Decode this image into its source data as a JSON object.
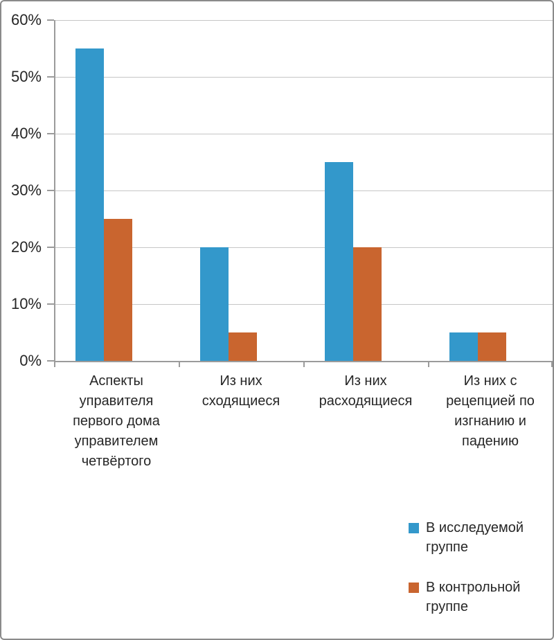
{
  "chart_data": {
    "type": "bar",
    "categories": [
      "Аспекты управителя первого дома управителем четвёртого",
      "Из них сходящиеся",
      "Из них расходящиеся",
      "Из них с рецепцией по изгнанию и падению"
    ],
    "series": [
      {
        "name": "В исследуемой группе",
        "color": "#3398cb",
        "values": [
          55,
          20,
          35,
          5
        ]
      },
      {
        "name": "В контрольной группе",
        "color": "#c9652f",
        "values": [
          25,
          5,
          20,
          5
        ]
      }
    ],
    "yticks": [
      "0%",
      "10%",
      "20%",
      "30%",
      "40%",
      "50%",
      "60%"
    ],
    "ylim": [
      0,
      60
    ],
    "ytick_step": 10,
    "grid": true,
    "legend_position": "bottom-right"
  },
  "colors": {
    "series1": "#3398cb",
    "series2": "#c9652f",
    "gridline": "#c6c6c6",
    "axis": "#9b9b9b",
    "text": "#262626",
    "frame_border": "#8a8a8a"
  }
}
